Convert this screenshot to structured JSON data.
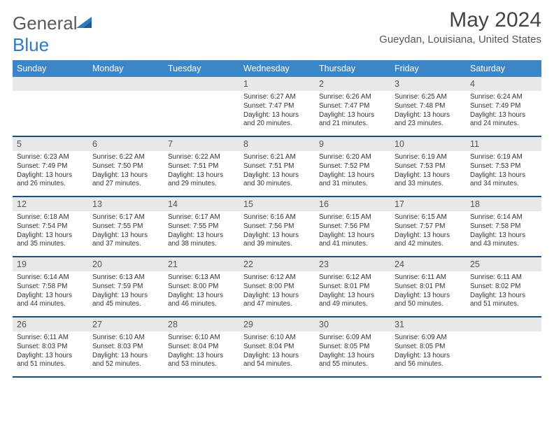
{
  "logo": {
    "text_general": "General",
    "text_blue": "Blue",
    "icon_color": "#2f7bbf"
  },
  "header": {
    "month_title": "May 2024",
    "location": "Gueydan, Louisiana, United States"
  },
  "colors": {
    "header_bg": "#3d86c6",
    "header_text": "#ffffff",
    "divider": "#1d4f7a",
    "daynum_bg": "#e8e8e8",
    "page_bg": "#ffffff",
    "text": "#333333"
  },
  "weekdays": [
    "Sunday",
    "Monday",
    "Tuesday",
    "Wednesday",
    "Thursday",
    "Friday",
    "Saturday"
  ],
  "weeks": [
    [
      null,
      null,
      null,
      {
        "n": "1",
        "sunrise": "6:27 AM",
        "sunset": "7:47 PM",
        "daylight": "13 hours and 20 minutes."
      },
      {
        "n": "2",
        "sunrise": "6:26 AM",
        "sunset": "7:47 PM",
        "daylight": "13 hours and 21 minutes."
      },
      {
        "n": "3",
        "sunrise": "6:25 AM",
        "sunset": "7:48 PM",
        "daylight": "13 hours and 23 minutes."
      },
      {
        "n": "4",
        "sunrise": "6:24 AM",
        "sunset": "7:49 PM",
        "daylight": "13 hours and 24 minutes."
      }
    ],
    [
      {
        "n": "5",
        "sunrise": "6:23 AM",
        "sunset": "7:49 PM",
        "daylight": "13 hours and 26 minutes."
      },
      {
        "n": "6",
        "sunrise": "6:22 AM",
        "sunset": "7:50 PM",
        "daylight": "13 hours and 27 minutes."
      },
      {
        "n": "7",
        "sunrise": "6:22 AM",
        "sunset": "7:51 PM",
        "daylight": "13 hours and 29 minutes."
      },
      {
        "n": "8",
        "sunrise": "6:21 AM",
        "sunset": "7:51 PM",
        "daylight": "13 hours and 30 minutes."
      },
      {
        "n": "9",
        "sunrise": "6:20 AM",
        "sunset": "7:52 PM",
        "daylight": "13 hours and 31 minutes."
      },
      {
        "n": "10",
        "sunrise": "6:19 AM",
        "sunset": "7:53 PM",
        "daylight": "13 hours and 33 minutes."
      },
      {
        "n": "11",
        "sunrise": "6:19 AM",
        "sunset": "7:53 PM",
        "daylight": "13 hours and 34 minutes."
      }
    ],
    [
      {
        "n": "12",
        "sunrise": "6:18 AM",
        "sunset": "7:54 PM",
        "daylight": "13 hours and 35 minutes."
      },
      {
        "n": "13",
        "sunrise": "6:17 AM",
        "sunset": "7:55 PM",
        "daylight": "13 hours and 37 minutes."
      },
      {
        "n": "14",
        "sunrise": "6:17 AM",
        "sunset": "7:55 PM",
        "daylight": "13 hours and 38 minutes."
      },
      {
        "n": "15",
        "sunrise": "6:16 AM",
        "sunset": "7:56 PM",
        "daylight": "13 hours and 39 minutes."
      },
      {
        "n": "16",
        "sunrise": "6:15 AM",
        "sunset": "7:56 PM",
        "daylight": "13 hours and 41 minutes."
      },
      {
        "n": "17",
        "sunrise": "6:15 AM",
        "sunset": "7:57 PM",
        "daylight": "13 hours and 42 minutes."
      },
      {
        "n": "18",
        "sunrise": "6:14 AM",
        "sunset": "7:58 PM",
        "daylight": "13 hours and 43 minutes."
      }
    ],
    [
      {
        "n": "19",
        "sunrise": "6:14 AM",
        "sunset": "7:58 PM",
        "daylight": "13 hours and 44 minutes."
      },
      {
        "n": "20",
        "sunrise": "6:13 AM",
        "sunset": "7:59 PM",
        "daylight": "13 hours and 45 minutes."
      },
      {
        "n": "21",
        "sunrise": "6:13 AM",
        "sunset": "8:00 PM",
        "daylight": "13 hours and 46 minutes."
      },
      {
        "n": "22",
        "sunrise": "6:12 AM",
        "sunset": "8:00 PM",
        "daylight": "13 hours and 47 minutes."
      },
      {
        "n": "23",
        "sunrise": "6:12 AM",
        "sunset": "8:01 PM",
        "daylight": "13 hours and 49 minutes."
      },
      {
        "n": "24",
        "sunrise": "6:11 AM",
        "sunset": "8:01 PM",
        "daylight": "13 hours and 50 minutes."
      },
      {
        "n": "25",
        "sunrise": "6:11 AM",
        "sunset": "8:02 PM",
        "daylight": "13 hours and 51 minutes."
      }
    ],
    [
      {
        "n": "26",
        "sunrise": "6:11 AM",
        "sunset": "8:03 PM",
        "daylight": "13 hours and 51 minutes."
      },
      {
        "n": "27",
        "sunrise": "6:10 AM",
        "sunset": "8:03 PM",
        "daylight": "13 hours and 52 minutes."
      },
      {
        "n": "28",
        "sunrise": "6:10 AM",
        "sunset": "8:04 PM",
        "daylight": "13 hours and 53 minutes."
      },
      {
        "n": "29",
        "sunrise": "6:10 AM",
        "sunset": "8:04 PM",
        "daylight": "13 hours and 54 minutes."
      },
      {
        "n": "30",
        "sunrise": "6:09 AM",
        "sunset": "8:05 PM",
        "daylight": "13 hours and 55 minutes."
      },
      {
        "n": "31",
        "sunrise": "6:09 AM",
        "sunset": "8:05 PM",
        "daylight": "13 hours and 56 minutes."
      },
      null
    ]
  ],
  "labels": {
    "sunrise": "Sunrise: ",
    "sunset": "Sunset: ",
    "daylight": "Daylight: "
  }
}
